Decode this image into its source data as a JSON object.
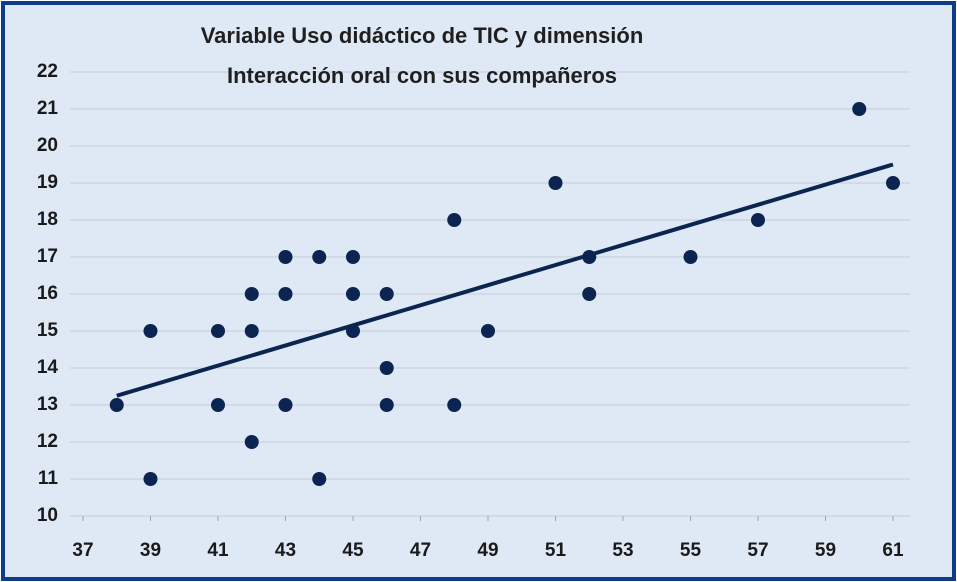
{
  "chart_data": {
    "type": "scatter",
    "title": [
      "Variable Uso didáctico de TIC y dimensión",
      "Interacción oral con sus compañeros"
    ],
    "x": [
      38,
      39,
      39,
      41,
      41,
      42,
      42,
      42,
      43,
      43,
      43,
      44,
      44,
      45,
      45,
      45,
      46,
      46,
      46,
      48,
      48,
      49,
      51,
      52,
      52,
      55,
      57,
      60,
      61
    ],
    "values": [
      13,
      15,
      11,
      15,
      13,
      16,
      15,
      12,
      17,
      16,
      13,
      17,
      11,
      17,
      16,
      15,
      16,
      14,
      13,
      18,
      13,
      15,
      19,
      17,
      16,
      17,
      18,
      21,
      19
    ],
    "color": "#0b2550",
    "trendline": {
      "x": [
        38,
        61
      ],
      "values": [
        13.25,
        19.5
      ],
      "color": "#0b2550"
    },
    "xlim": [
      37,
      61
    ],
    "xticks": [
      37,
      39,
      41,
      43,
      45,
      47,
      49,
      51,
      53,
      55,
      57,
      59,
      61
    ],
    "ylim": [
      10,
      22
    ],
    "yticks": [
      10,
      11,
      12,
      13,
      14,
      15,
      16,
      17,
      18,
      19,
      20,
      21,
      22
    ],
    "grid": true
  }
}
